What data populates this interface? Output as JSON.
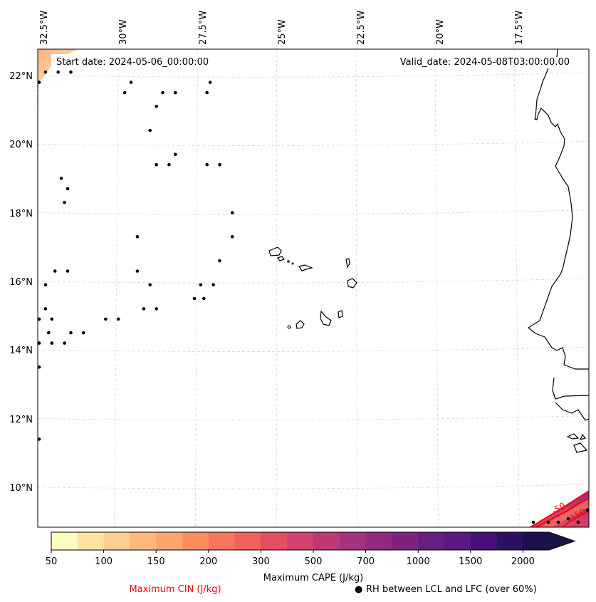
{
  "map": {
    "start_date_label": "Start date: 2024-05-06_00:00:00",
    "valid_date_label": "Valid_date: 2024-05-08T03:00:00.00",
    "lon_ticks": [
      "32.5°W",
      "30°W",
      "27.5°W",
      "25°W",
      "22.5°W",
      "20°W",
      "17.5°W"
    ],
    "lat_ticks": [
      "22°N",
      "20°N",
      "18°N",
      "16°N",
      "14°N",
      "12°N",
      "10°N"
    ],
    "gridlines": "dashed light gray",
    "coastline_color": "#000000",
    "cin_contour_color": "#ff0000",
    "cin_contour_labels": [
      "-50",
      "-150"
    ],
    "rh_marker": "black dot",
    "rh_points_lonlat": [
      [
        -32.3,
        22.1
      ],
      [
        -31.9,
        22.1
      ],
      [
        -31.5,
        22.1
      ],
      [
        -32.5,
        21.8
      ],
      [
        -29.6,
        21.8
      ],
      [
        -27.1,
        21.8
      ],
      [
        -29.8,
        21.5
      ],
      [
        -28.6,
        21.5
      ],
      [
        -28.2,
        21.5
      ],
      [
        -27.2,
        21.5
      ],
      [
        -28.8,
        21.1
      ],
      [
        -29.0,
        20.4
      ],
      [
        -28.2,
        19.7
      ],
      [
        -28.8,
        19.4
      ],
      [
        -28.4,
        19.4
      ],
      [
        -27.2,
        19.4
      ],
      [
        -26.8,
        19.4
      ],
      [
        -31.8,
        19.0
      ],
      [
        -31.6,
        18.7
      ],
      [
        -31.7,
        18.3
      ],
      [
        -26.4,
        18.0
      ],
      [
        -29.4,
        17.3
      ],
      [
        -26.4,
        17.3
      ],
      [
        -26.8,
        16.6
      ],
      [
        -32.0,
        16.3
      ],
      [
        -31.6,
        16.3
      ],
      [
        -29.4,
        16.3
      ],
      [
        -32.3,
        15.9
      ],
      [
        -29.0,
        15.9
      ],
      [
        -27.4,
        15.9
      ],
      [
        -27.0,
        15.9
      ],
      [
        -27.6,
        15.5
      ],
      [
        -27.3,
        15.5
      ],
      [
        -32.3,
        15.2
      ],
      [
        -29.2,
        15.2
      ],
      [
        -28.8,
        15.2
      ],
      [
        -32.5,
        14.9
      ],
      [
        -32.1,
        14.9
      ],
      [
        -30.4,
        14.9
      ],
      [
        -30.0,
        14.9
      ],
      [
        -32.2,
        14.5
      ],
      [
        -31.5,
        14.5
      ],
      [
        -31.1,
        14.5
      ],
      [
        -32.5,
        14.2
      ],
      [
        -32.1,
        14.2
      ],
      [
        -31.7,
        14.2
      ],
      [
        -32.5,
        13.5
      ],
      [
        -32.5,
        11.4
      ]
    ]
  },
  "colorbar": {
    "title": "Maximum CAPE (J/kg)",
    "tick_labels": [
      "50",
      "100",
      "150",
      "200",
      "300",
      "500",
      "700",
      "1000",
      "1500",
      "2000"
    ],
    "colors": [
      "#fcfdbf",
      "#fde2a1",
      "#fecf92",
      "#feb87e",
      "#fea672",
      "#fd8d5f",
      "#f8765c",
      "#f1605d",
      "#e34e65",
      "#d1426f",
      "#bb3a75",
      "#a6327c",
      "#91297f",
      "#7c2381",
      "#661f80",
      "#5b187f",
      "#45107a",
      "#2e1061",
      "#1e1048"
    ],
    "extend": "max"
  },
  "legend": {
    "cin_label": "Maximum CIN (J/kg)",
    "cin_color": "#ff0000",
    "rh_label": "RH between LCL and LFC (over 60%)",
    "rh_symbol": "●"
  }
}
